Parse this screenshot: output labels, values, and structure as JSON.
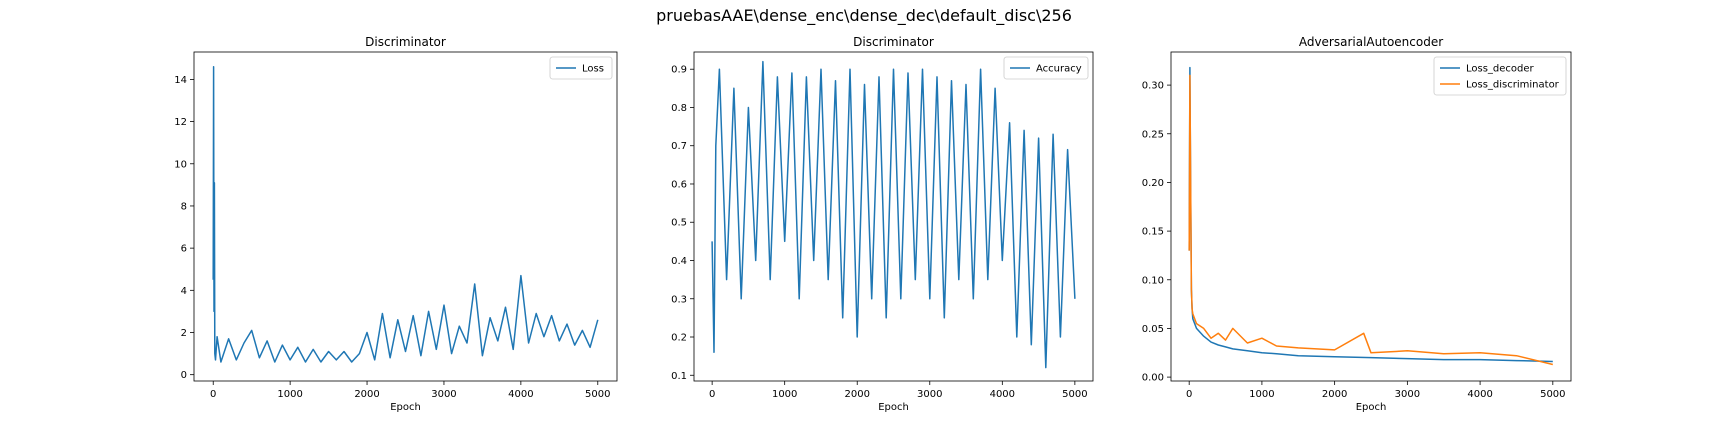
{
  "figure": {
    "suptitle": "pruebasAAE\\dense_enc\\dense_dec\\default_disc\\256"
  },
  "chart_data": [
    {
      "type": "line",
      "title": "Discriminator",
      "xlabel": "Epoch",
      "ylabel": "",
      "xlim": [
        -250,
        5250
      ],
      "ylim": [
        -0.3,
        15.3
      ],
      "xticks": [
        0,
        1000,
        2000,
        3000,
        4000,
        5000
      ],
      "yticks": [
        0,
        2,
        4,
        6,
        8,
        10,
        12,
        14
      ],
      "grid": false,
      "legend_position": "top-right",
      "series": [
        {
          "name": "Loss",
          "color": "#1f77b4",
          "x": [
            0,
            5,
            10,
            15,
            20,
            30,
            50,
            100,
            200,
            300,
            400,
            500,
            600,
            700,
            800,
            900,
            1000,
            1100,
            1200,
            1300,
            1400,
            1500,
            1600,
            1700,
            1800,
            1900,
            2000,
            2100,
            2200,
            2300,
            2400,
            2500,
            2600,
            2700,
            2800,
            2900,
            3000,
            3100,
            3200,
            3300,
            3400,
            3500,
            3600,
            3700,
            3800,
            3900,
            4000,
            4100,
            4200,
            4300,
            4400,
            4500,
            4600,
            4700,
            4800,
            4900,
            5000
          ],
          "values": [
            4.5,
            14.6,
            3.0,
            9.1,
            1.0,
            0.7,
            1.8,
            0.6,
            1.7,
            0.7,
            1.5,
            2.1,
            0.8,
            1.6,
            0.6,
            1.4,
            0.7,
            1.3,
            0.6,
            1.2,
            0.6,
            1.1,
            0.7,
            1.1,
            0.6,
            1.0,
            2.0,
            0.7,
            2.9,
            0.8,
            2.6,
            1.1,
            2.8,
            0.9,
            3.0,
            1.2,
            3.3,
            1.0,
            2.3,
            1.5,
            4.3,
            0.9,
            2.7,
            1.6,
            3.2,
            1.2,
            4.7,
            1.5,
            2.9,
            1.8,
            2.8,
            1.6,
            2.4,
            1.4,
            2.1,
            1.3,
            2.6
          ]
        }
      ]
    },
    {
      "type": "line",
      "title": "Discriminator",
      "xlabel": "Epoch",
      "ylabel": "",
      "xlim": [
        -250,
        5250
      ],
      "ylim": [
        0.085,
        0.945
      ],
      "xticks": [
        0,
        1000,
        2000,
        3000,
        4000,
        5000
      ],
      "yticks": [
        0.1,
        0.2,
        0.3,
        0.4,
        0.5,
        0.6,
        0.7,
        0.8,
        0.9
      ],
      "grid": false,
      "legend_position": "top-right",
      "series": [
        {
          "name": "Accuracy",
          "color": "#1f77b4",
          "x": [
            0,
            25,
            50,
            100,
            200,
            300,
            400,
            500,
            600,
            700,
            800,
            900,
            1000,
            1100,
            1200,
            1300,
            1400,
            1500,
            1600,
            1700,
            1800,
            1900,
            2000,
            2100,
            2200,
            2300,
            2400,
            2500,
            2600,
            2700,
            2800,
            2900,
            3000,
            3100,
            3200,
            3300,
            3400,
            3500,
            3600,
            3700,
            3800,
            3900,
            4000,
            4100,
            4200,
            4300,
            4400,
            4500,
            4600,
            4700,
            4800,
            4900,
            5000
          ],
          "values": [
            0.45,
            0.16,
            0.7,
            0.9,
            0.35,
            0.85,
            0.3,
            0.8,
            0.4,
            0.92,
            0.35,
            0.88,
            0.45,
            0.89,
            0.3,
            0.88,
            0.4,
            0.9,
            0.35,
            0.87,
            0.25,
            0.9,
            0.2,
            0.86,
            0.3,
            0.88,
            0.25,
            0.9,
            0.3,
            0.89,
            0.35,
            0.9,
            0.3,
            0.88,
            0.25,
            0.87,
            0.35,
            0.86,
            0.3,
            0.9,
            0.35,
            0.85,
            0.4,
            0.76,
            0.2,
            0.74,
            0.18,
            0.72,
            0.12,
            0.73,
            0.2,
            0.69,
            0.3
          ]
        }
      ]
    },
    {
      "type": "line",
      "title": "AdversarialAutoencoder",
      "xlabel": "Epoch",
      "ylabel": "",
      "xlim": [
        -250,
        5250
      ],
      "ylim": [
        -0.004,
        0.334
      ],
      "xticks": [
        0,
        1000,
        2000,
        3000,
        4000,
        5000
      ],
      "yticks": [
        0.0,
        0.05,
        0.1,
        0.15,
        0.2,
        0.25,
        0.3
      ],
      "grid": false,
      "legend_position": "top-right",
      "series": [
        {
          "name": "Loss_decoder",
          "color": "#1f77b4",
          "x": [
            0,
            10,
            20,
            30,
            40,
            50,
            100,
            200,
            300,
            400,
            500,
            600,
            800,
            1000,
            1200,
            1500,
            2000,
            2500,
            3000,
            3500,
            4000,
            4500,
            5000
          ],
          "values": [
            0.13,
            0.318,
            0.2,
            0.09,
            0.07,
            0.06,
            0.05,
            0.042,
            0.036,
            0.033,
            0.031,
            0.029,
            0.027,
            0.025,
            0.024,
            0.022,
            0.021,
            0.02,
            0.019,
            0.018,
            0.018,
            0.017,
            0.016
          ]
        },
        {
          "name": "Loss_discriminator",
          "color": "#ff7f0e",
          "x": [
            0,
            10,
            20,
            30,
            40,
            50,
            100,
            200,
            300,
            400,
            500,
            600,
            800,
            1000,
            1200,
            1500,
            2000,
            2400,
            2500,
            3000,
            3500,
            4000,
            4500,
            5000
          ],
          "values": [
            0.13,
            0.31,
            0.205,
            0.09,
            0.07,
            0.065,
            0.055,
            0.05,
            0.04,
            0.045,
            0.038,
            0.05,
            0.035,
            0.04,
            0.032,
            0.03,
            0.028,
            0.045,
            0.025,
            0.027,
            0.024,
            0.025,
            0.022,
            0.013
          ]
        }
      ]
    }
  ]
}
